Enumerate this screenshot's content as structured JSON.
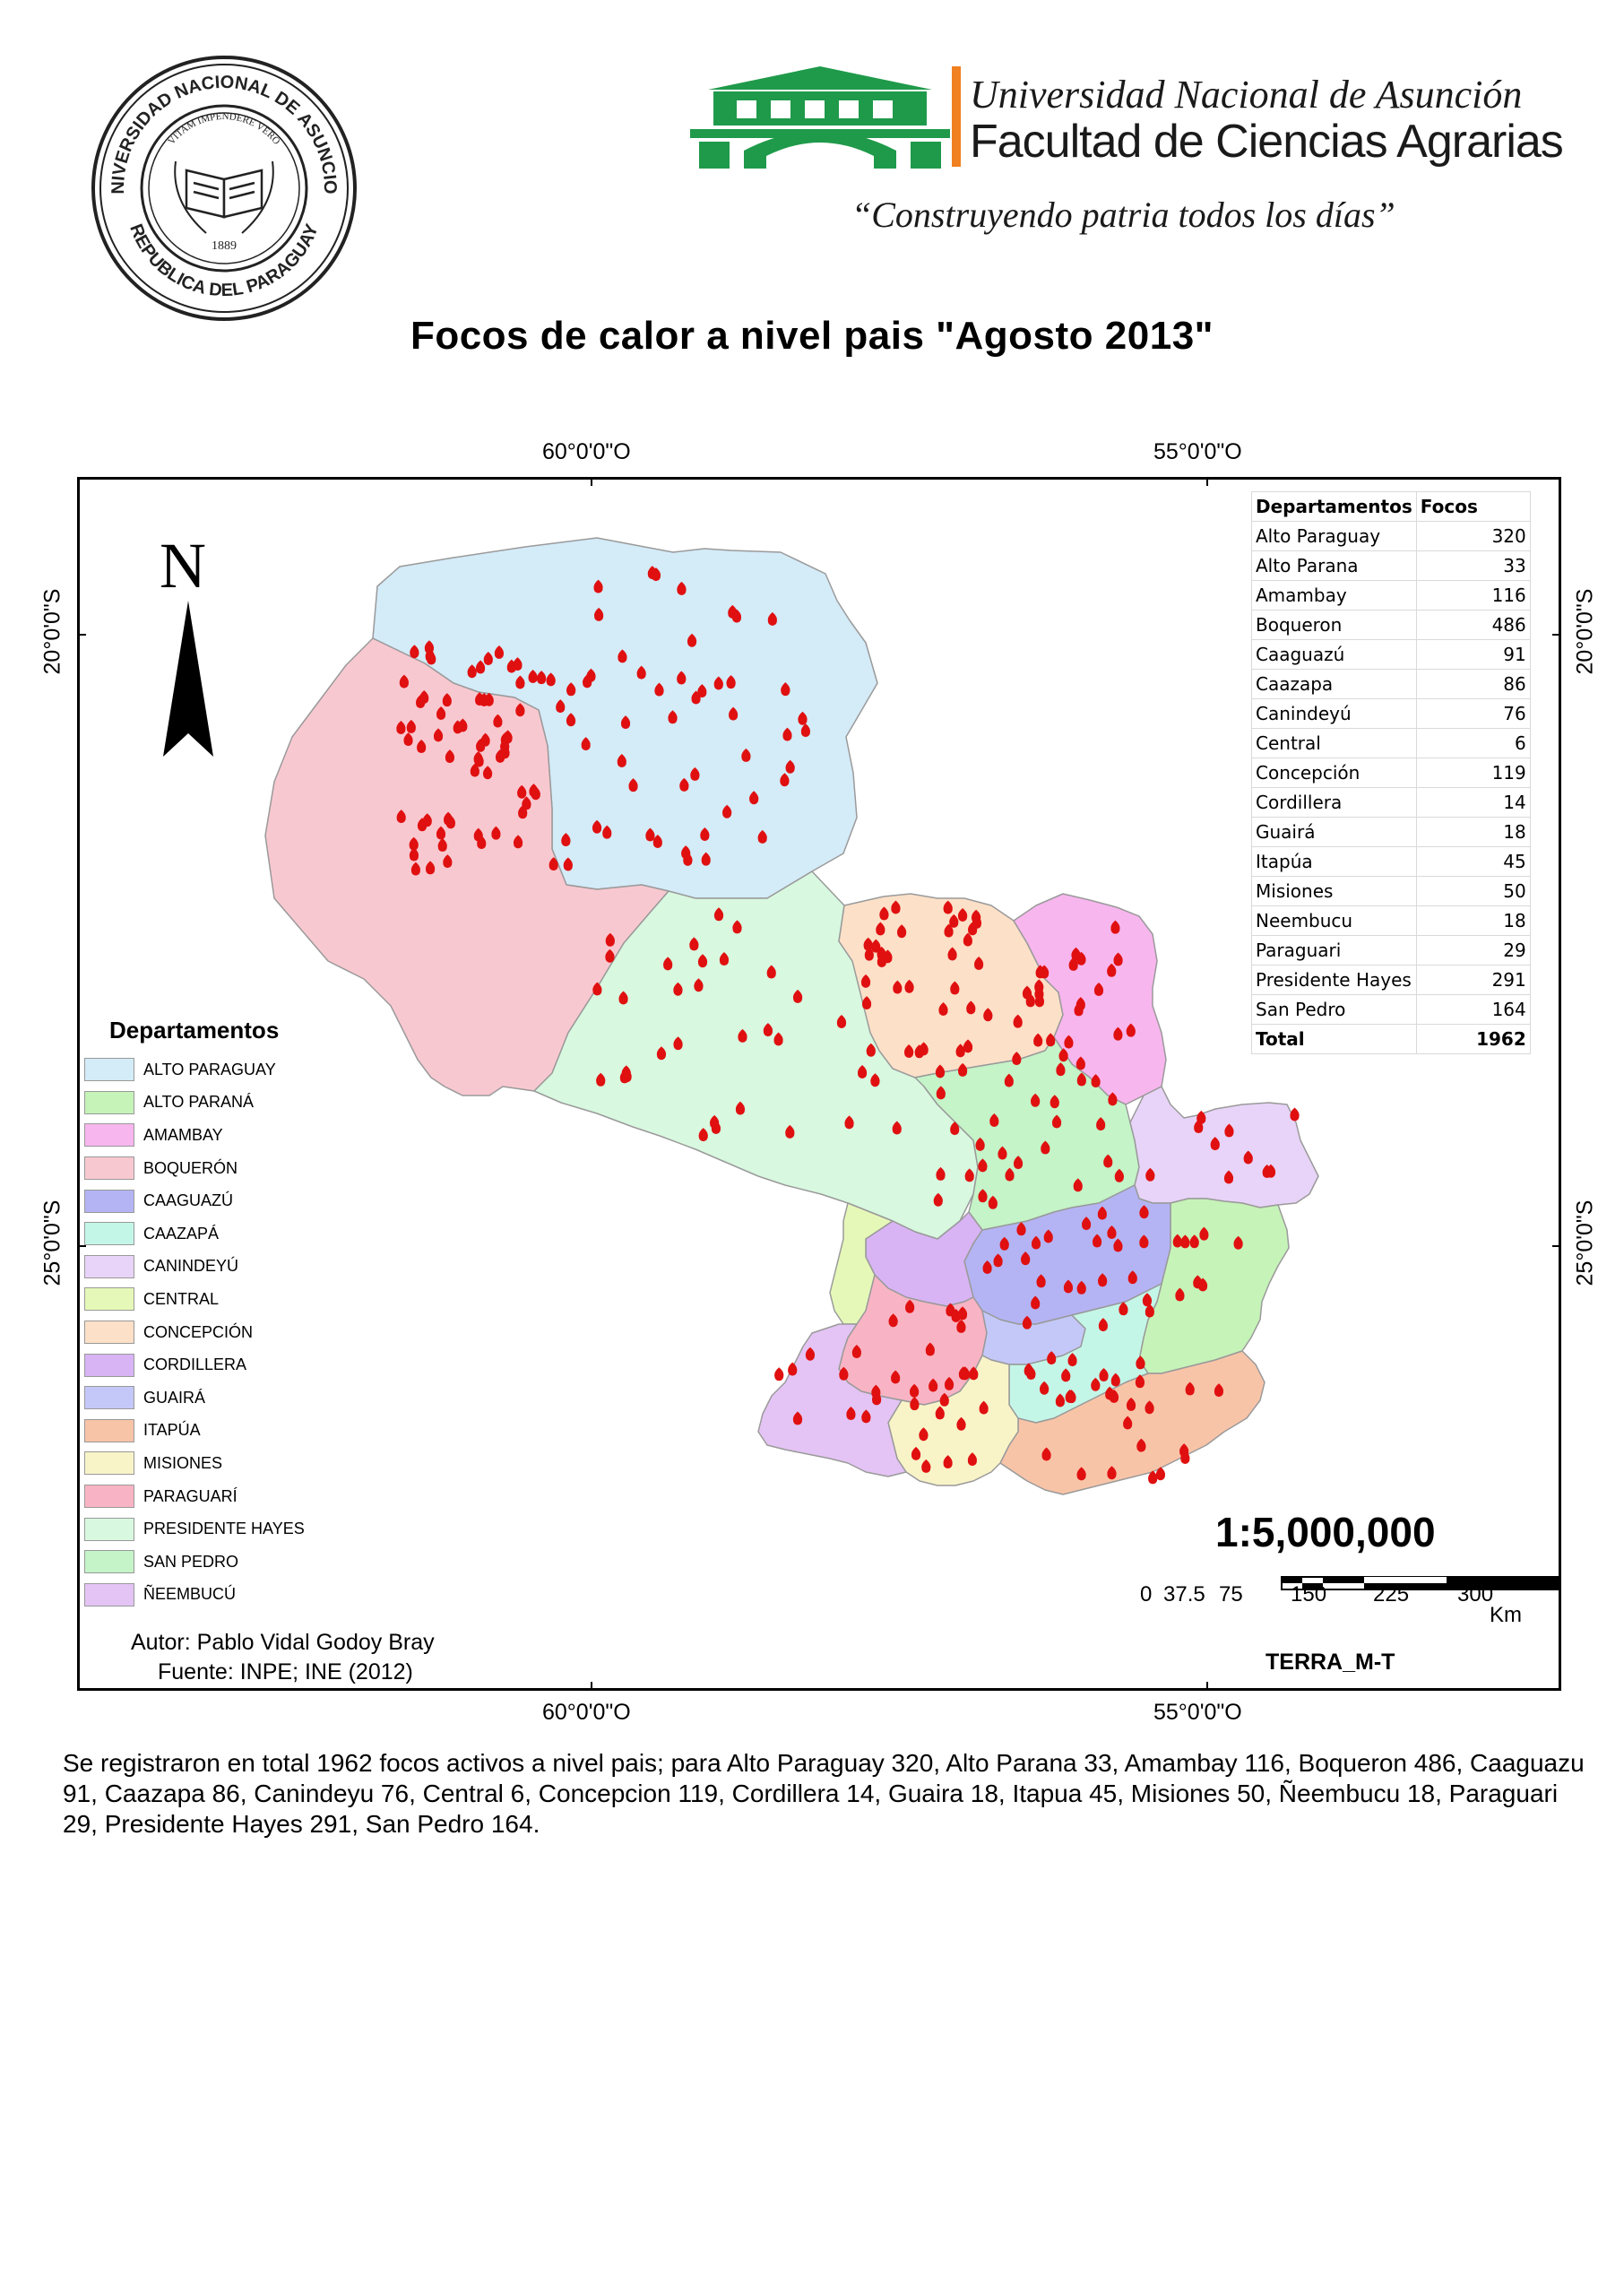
{
  "header": {
    "seal_text_top": "UNIVERSIDAD NACIONAL DE ASUNCION",
    "seal_motto": "VITAM IMPENDERE VERO",
    "seal_year": "1889",
    "seal_text_bottom": "REPUBLICA DEL PARAGUAY",
    "university": "Universidad Nacional de Asunción",
    "faculty": "Facultad de Ciencias Agrarias",
    "motto": "“Construyendo patria todos los días”",
    "brand_green": "#1f9a4a",
    "brand_orange": "#f08020"
  },
  "title": "Focos de calor a nivel pais \"Agosto 2013\"",
  "map": {
    "coords": {
      "top_left": "60°0'0\"O",
      "top_right": "55°0'0\"O",
      "bottom_left": "60°0'0\"O",
      "bottom_right": "55°0'0\"O",
      "left_upper": "20°0'0\"S",
      "left_lower": "25°0'0\"S",
      "right_upper": "20°0'0\"S",
      "right_lower": "25°0'0\"S"
    },
    "north_label": "N",
    "scale_ratio": "1:5,000,000",
    "scale_ticks": [
      "0",
      "37.5",
      "75",
      "150",
      "225",
      "300"
    ],
    "scale_unit": "Km",
    "satellite": "TERRA_M-T",
    "author": "Autor: Pablo Vidal Godoy Bray",
    "source": "Fuente: INPE; INE (2012)",
    "hotspot_color": "#e01010"
  },
  "table": {
    "headers": [
      "Departamentos",
      "Focos"
    ],
    "rows": [
      {
        "name": "Alto Paraguay",
        "focos": "320"
      },
      {
        "name": "Alto Parana",
        "focos": "33"
      },
      {
        "name": "Amambay",
        "focos": "116"
      },
      {
        "name": "Boqueron",
        "focos": "486"
      },
      {
        "name": "Caaguazú",
        "focos": "91"
      },
      {
        "name": "Caazapa",
        "focos": "86"
      },
      {
        "name": "Canindeyú",
        "focos": "76"
      },
      {
        "name": "Central",
        "focos": "6"
      },
      {
        "name": "Concepción",
        "focos": "119"
      },
      {
        "name": "Cordillera",
        "focos": "14"
      },
      {
        "name": "Guairá",
        "focos": "18"
      },
      {
        "name": "Itapúa",
        "focos": "45"
      },
      {
        "name": "Misiones",
        "focos": "50"
      },
      {
        "name": "Neembucu",
        "focos": "18"
      },
      {
        "name": "Paraguari",
        "focos": "29"
      },
      {
        "name": "Presidente Hayes",
        "focos": "291"
      },
      {
        "name": "San Pedro",
        "focos": "164"
      }
    ],
    "total_label": "Total",
    "total_value": "1962"
  },
  "legend": {
    "title": "Departamentos",
    "items": [
      {
        "label": "ALTO PARAGUAY",
        "color": "#d4ebf8"
      },
      {
        "label": "ALTO PARANÁ",
        "color": "#c6f3b8"
      },
      {
        "label": "AMAMBAY",
        "color": "#f7b6ee"
      },
      {
        "label": "BOQUERÓN",
        "color": "#f8c8d0"
      },
      {
        "label": "CAAGUAZÚ",
        "color": "#b4b4f4"
      },
      {
        "label": "CAAZAPÁ",
        "color": "#c4f6e8"
      },
      {
        "label": "CANINDEYÚ",
        "color": "#e8d4f8"
      },
      {
        "label": "CENTRAL",
        "color": "#e6f8b8"
      },
      {
        "label": "CONCEPCIÓN",
        "color": "#fce0c8"
      },
      {
        "label": "CORDILLERA",
        "color": "#d8b4f4"
      },
      {
        "label": "GUAIRÁ",
        "color": "#c4c8f8"
      },
      {
        "label": "ITAPÚA",
        "color": "#f8c4a8"
      },
      {
        "label": "MISIONES",
        "color": "#f8f4c8"
      },
      {
        "label": "PARAGUARÍ",
        "color": "#f8b4c4"
      },
      {
        "label": "PRESIDENTE HAYES",
        "color": "#d8f8e0"
      },
      {
        "label": "SAN PEDRO",
        "color": "#c4f4c8"
      },
      {
        "label": "ÑEEMBUCÚ",
        "color": "#e4c4f4"
      }
    ]
  },
  "summary": "Se registraron en total 1962 focos activos a nivel pais; para Alto Paraguay 320, Alto Parana 33, Amambay 116, Boqueron 486, Caaguazu 91, Caazapa 86, Canindeyu 76, Central 6, Concepcion 119, Cordillera 14, Guaira 18, Itapua 45, Misiones 50, Ñeembucu 18, Paraguari 29, Presidente Hayes 291, San Pedro 164."
}
